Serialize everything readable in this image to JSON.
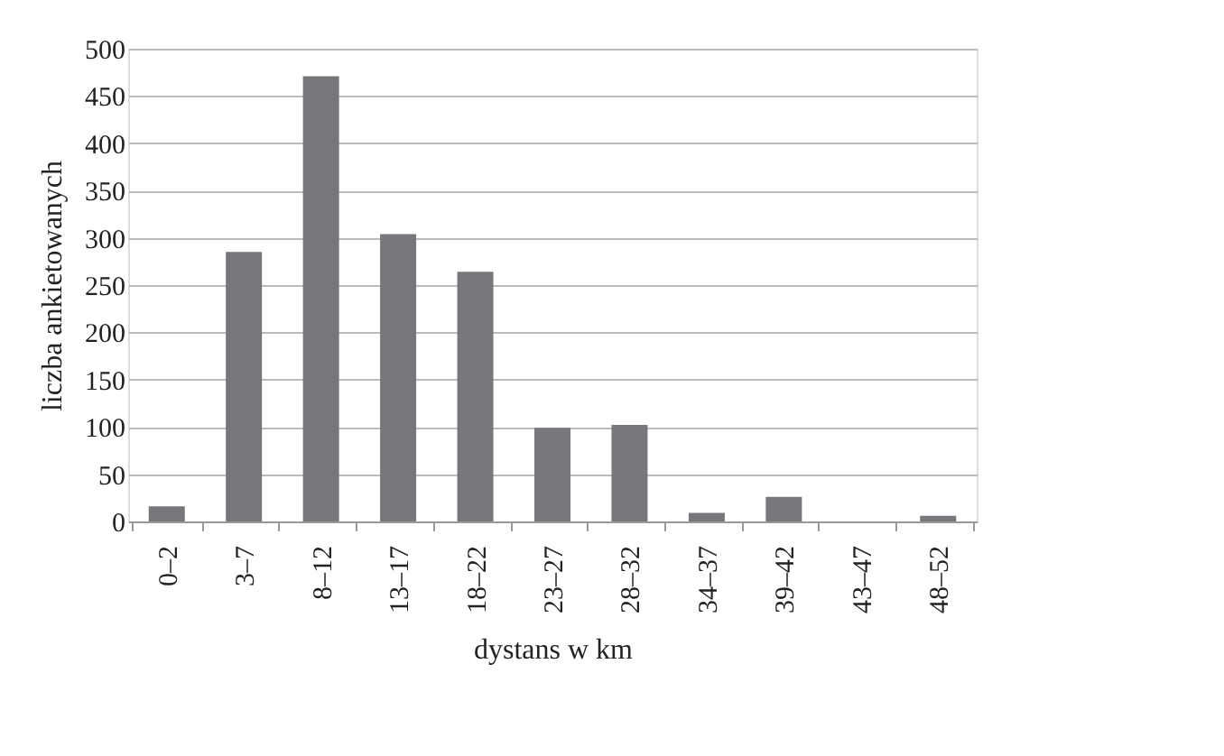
{
  "chart_data": {
    "type": "bar",
    "xlabel": "dystans w km",
    "ylabel": "liczba ankietowanych",
    "categories": [
      "0–2",
      "3–7",
      "8–12",
      "13–17",
      "18–22",
      "23–27",
      "28–32",
      "34–37",
      "39–42",
      "43–47",
      "48–52"
    ],
    "values": [
      16,
      285,
      471,
      304,
      264,
      99,
      102,
      9,
      26,
      0,
      6
    ],
    "color": "#76777b",
    "ylim": [
      0,
      500
    ],
    "yticks": [
      0,
      50,
      100,
      150,
      200,
      250,
      300,
      350,
      400,
      450,
      500
    ],
    "grid": "y"
  }
}
